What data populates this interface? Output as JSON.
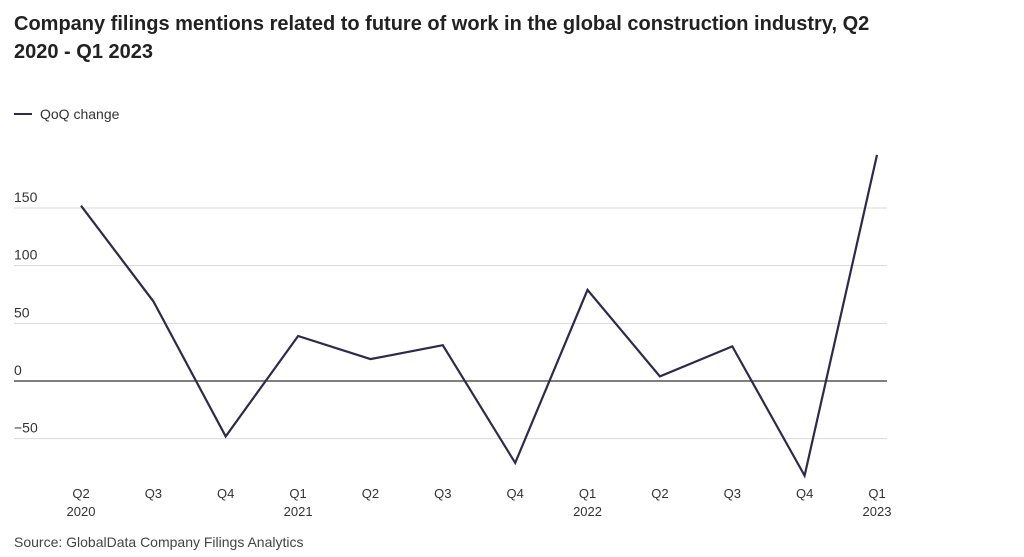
{
  "chart_data": {
    "type": "line",
    "title": "Company filings mentions related to future of work in the global construction industry, Q2 2020 - Q1 2023",
    "xlabel": "",
    "ylabel": "",
    "categories": [
      {
        "quarter": "Q2",
        "year": "2020"
      },
      {
        "quarter": "Q3",
        "year": ""
      },
      {
        "quarter": "Q4",
        "year": ""
      },
      {
        "quarter": "Q1",
        "year": "2021"
      },
      {
        "quarter": "Q2",
        "year": ""
      },
      {
        "quarter": "Q3",
        "year": ""
      },
      {
        "quarter": "Q4",
        "year": ""
      },
      {
        "quarter": "Q1",
        "year": "2022"
      },
      {
        "quarter": "Q2",
        "year": ""
      },
      {
        "quarter": "Q3",
        "year": ""
      },
      {
        "quarter": "Q4",
        "year": ""
      },
      {
        "quarter": "Q1",
        "year": "2023"
      }
    ],
    "series": [
      {
        "name": "QoQ change",
        "color": "#2e2a4a",
        "values": [
          152,
          69,
          -48,
          39,
          19,
          31,
          -71,
          79,
          4,
          30,
          -82,
          196
        ]
      }
    ],
    "yticks": [
      -50,
      0,
      50,
      100,
      150
    ],
    "ytick_labels": [
      "−50",
      "0",
      "50",
      "100",
      "150"
    ],
    "ylim": [
      -90,
      200
    ],
    "grid": true,
    "legend_position": "top-left",
    "source": "Source: GlobalData Company Filings Analytics"
  }
}
